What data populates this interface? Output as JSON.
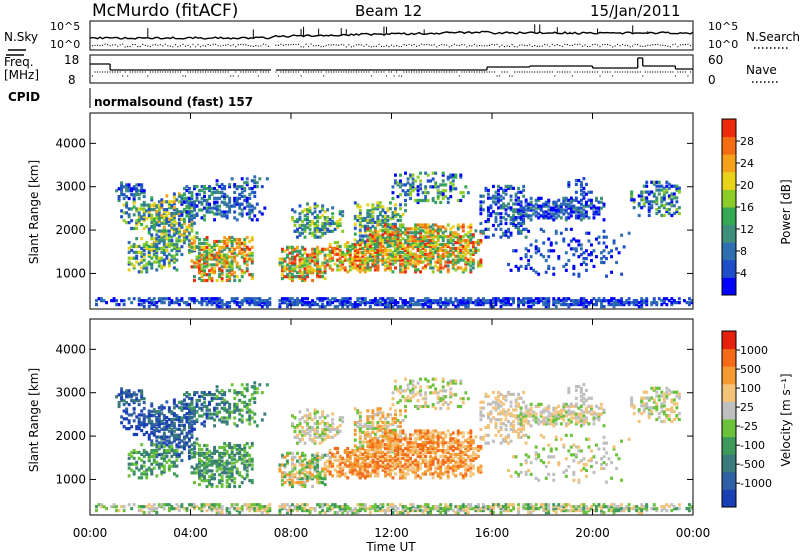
{
  "header": {
    "station": "McMurdo (fitACF)",
    "beam": "Beam 12",
    "date": "15/Jan/2011"
  },
  "panels": {
    "nsky_label": "N.Sky",
    "nsky_left_ticks": [
      "10^5",
      "10^0"
    ],
    "nsearch_label": "N.Search",
    "nsearch_right_ticks": [
      "10^5",
      "10^0"
    ],
    "freq_label": "Freq.",
    "freq_unit": "[MHz]",
    "freq_ticks": [
      "18",
      "8"
    ],
    "nave_label": "Nave",
    "nave_ticks": [
      "60",
      "0"
    ],
    "cpid_label": "CPID",
    "cpid_text": "normalsound (fast) 157",
    "legend_solid": "—",
    "legend_dotted": "........"
  },
  "chart_data": [
    {
      "type": "heatmap",
      "title": "",
      "xlabel": "",
      "ylabel": "Slant Range [km]",
      "x_ticks": [
        "00:00",
        "04:00",
        "08:00",
        "12:00",
        "16:00",
        "20:00",
        "00:00"
      ],
      "x_range_hours": [
        0,
        24
      ],
      "y_ticks": [
        "1000",
        "2000",
        "3000",
        "4000"
      ],
      "ylim": [
        180,
        4700
      ],
      "colorbar": {
        "label": "Power [dB]",
        "ticks": [
          "4",
          "8",
          "12",
          "16",
          "20",
          "24",
          "28"
        ],
        "colors": [
          "#0000ff",
          "#1f4fc8",
          "#2f6fb0",
          "#3e8f7a",
          "#34a854",
          "#8ccc2a",
          "#e8d21a",
          "#f5a21a",
          "#f36d12",
          "#ee2a0c"
        ]
      }
    },
    {
      "type": "heatmap",
      "title": "",
      "xlabel": "Time UT",
      "ylabel": "Slant Range [km]",
      "x_ticks": [
        "00:00",
        "04:00",
        "08:00",
        "12:00",
        "16:00",
        "20:00",
        "00:00"
      ],
      "x_range_hours": [
        0,
        24
      ],
      "y_ticks": [
        "1000",
        "2000",
        "3000",
        "4000"
      ],
      "ylim": [
        180,
        4700
      ],
      "colorbar": {
        "label": "Velocity [m s⁻¹]",
        "ticks": [
          "1000",
          "500",
          "100",
          "25",
          "-25",
          "-100",
          "-500",
          "-1000"
        ],
        "colors": [
          "#1a3fb5",
          "#2f5fa5",
          "#3a7a7a",
          "#3e9a5a",
          "#6cc23a",
          "#bfbfbf",
          "#f3c37a",
          "#f59a30",
          "#f56a18",
          "#e6200f"
        ]
      }
    }
  ]
}
